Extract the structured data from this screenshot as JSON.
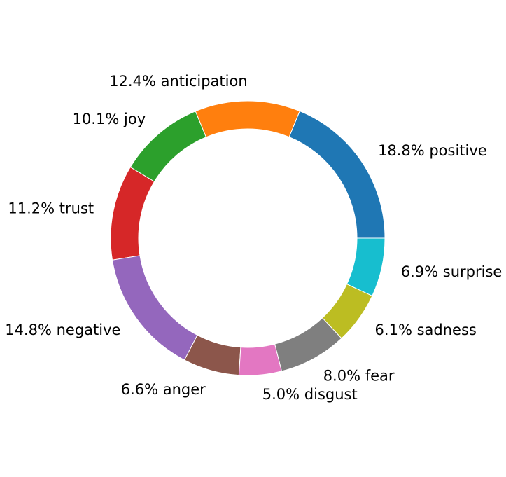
{
  "chart_data": {
    "type": "pie",
    "donut": true,
    "start_angle_deg": 0,
    "direction": "counterclockwise",
    "slices": [
      {
        "label": "positive",
        "value": 18.8,
        "text": "18.8% positive",
        "color": "#1f77b4"
      },
      {
        "label": "anticipation",
        "value": 12.4,
        "text": "12.4% anticipation",
        "color": "#ff7f0e"
      },
      {
        "label": "joy",
        "value": 10.1,
        "text": "10.1% joy",
        "color": "#2ca02c"
      },
      {
        "label": "trust",
        "value": 11.2,
        "text": "11.2% trust",
        "color": "#d62728"
      },
      {
        "label": "negative",
        "value": 14.8,
        "text": "14.8% negative",
        "color": "#9467bd"
      },
      {
        "label": "anger",
        "value": 6.6,
        "text": "6.6% anger",
        "color": "#8c564b"
      },
      {
        "label": "disgust",
        "value": 5.0,
        "text": "5.0% disgust",
        "color": "#e377c2"
      },
      {
        "label": "fear",
        "value": 8.0,
        "text": "8.0% fear",
        "color": "#7f7f7f"
      },
      {
        "label": "sadness",
        "value": 6.1,
        "text": "6.1% sadness",
        "color": "#bcbd22"
      },
      {
        "label": "surprise",
        "value": 6.9,
        "text": "6.9% surprise",
        "color": "#17becf"
      }
    ]
  }
}
